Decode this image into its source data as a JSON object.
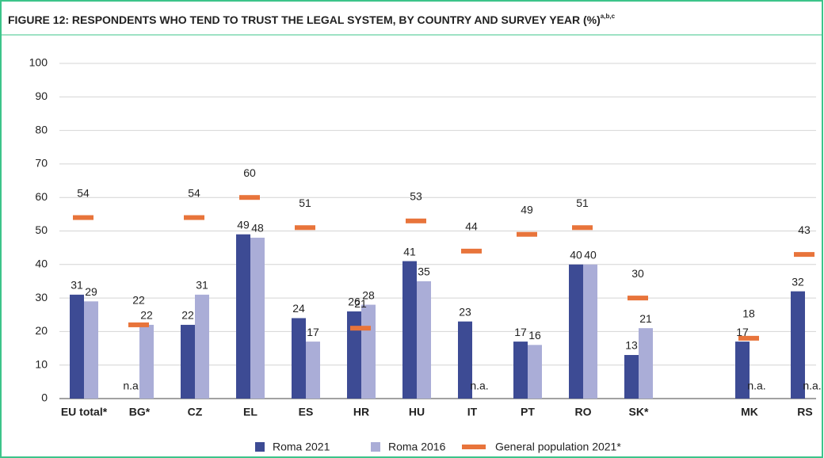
{
  "chart_data": {
    "type": "bar",
    "title": "FIGURE 12:  RESPONDENTS WHO TEND TO TRUST THE LEGAL SYSTEM, BY COUNTRY AND SURVEY YEAR (%)",
    "title_notes": "a,b,c",
    "categories": [
      "EU total*",
      "BG*",
      "CZ",
      "EL",
      "ES",
      "HR",
      "HU",
      "IT",
      "PT",
      "RO",
      "SK*",
      null,
      "MK",
      "RS"
    ],
    "series": [
      {
        "name": "Roma 2021",
        "color": "#3d4b94",
        "style": "bar",
        "values": [
          31,
          null,
          22,
          49,
          24,
          26,
          41,
          23,
          17,
          40,
          13,
          null,
          17,
          32
        ],
        "value_labels": [
          "31",
          "n.a.",
          "22",
          "49",
          "24",
          "26",
          "41",
          "23",
          "17",
          "40",
          "13",
          null,
          "17",
          "32"
        ]
      },
      {
        "name": "Roma 2016",
        "color": "#aaadd7",
        "style": "bar",
        "values": [
          29,
          22,
          31,
          48,
          17,
          28,
          35,
          null,
          16,
          40,
          21,
          null,
          null,
          null
        ],
        "value_labels": [
          "29",
          "22",
          "31",
          "48",
          "17",
          "28",
          "35",
          "n.a.",
          "16",
          "40",
          "21",
          null,
          "n.a.",
          "n.a."
        ]
      },
      {
        "name": "General population 2021*",
        "color": "#e8743b",
        "style": "marker",
        "values": [
          54,
          22,
          54,
          60,
          51,
          21,
          53,
          44,
          49,
          51,
          30,
          null,
          18,
          43
        ]
      }
    ],
    "ylim": [
      0,
      100
    ],
    "yticks": [
      0,
      10,
      20,
      30,
      40,
      50,
      60,
      70,
      80,
      90,
      100
    ],
    "grid": true
  }
}
